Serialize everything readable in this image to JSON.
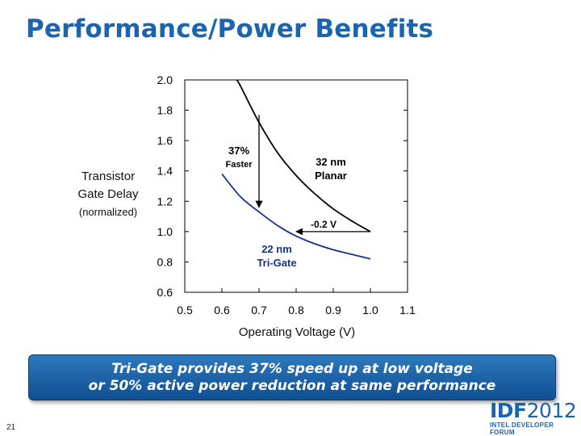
{
  "slide": {
    "title": "Performance/Power Benefits",
    "page_number": "21"
  },
  "banner": {
    "line1": "Tri-Gate provides 37% speed up at low voltage",
    "line2": "or 50% active power reduction at same performance",
    "color": "#1a5a9e"
  },
  "logo": {
    "main_bold": "IDF",
    "main_light": "2012",
    "sub": "INTEL DEVELOPER FORUM"
  },
  "chart_data": {
    "type": "line",
    "xlabel": "Operating Voltage (V)",
    "ylabel_lines": [
      "Transistor",
      "Gate Delay",
      "(normalized)"
    ],
    "xlim": [
      0.5,
      1.1
    ],
    "ylim": [
      0.6,
      2.0
    ],
    "x_ticks": [
      "0.5",
      "0.6",
      "0.7",
      "0.8",
      "0.9",
      "1.0",
      "1.1"
    ],
    "y_ticks": [
      "0.6",
      "0.8",
      "1.0",
      "1.2",
      "1.4",
      "1.6",
      "1.8",
      "2.0"
    ],
    "grid": false,
    "series": [
      {
        "label_lines": [
          "32 nm",
          "Planar"
        ],
        "color": "#000000",
        "x": [
          0.64,
          0.65,
          0.7,
          0.75,
          0.8,
          0.85,
          0.9,
          0.95,
          1.0
        ],
        "y": [
          2.0,
          1.96,
          1.72,
          1.52,
          1.37,
          1.25,
          1.15,
          1.07,
          1.0
        ]
      },
      {
        "label_lines": [
          "22 nm",
          "Tri-Gate"
        ],
        "color": "#14318c",
        "x": [
          0.6,
          0.65,
          0.7,
          0.75,
          0.8,
          0.85,
          0.9,
          0.95,
          1.0
        ],
        "y": [
          1.38,
          1.23,
          1.13,
          1.04,
          0.97,
          0.92,
          0.88,
          0.85,
          0.82
        ]
      }
    ],
    "annotations": [
      {
        "text_lines": [
          "37%",
          "Faster"
        ],
        "arrow_from": [
          0.7,
          1.77
        ],
        "arrow_to": [
          0.7,
          1.16
        ]
      },
      {
        "text_lines": [
          "-0.2 V"
        ],
        "arrow_from": [
          1.0,
          1.0
        ],
        "arrow_to": [
          0.8,
          1.0
        ]
      }
    ]
  }
}
